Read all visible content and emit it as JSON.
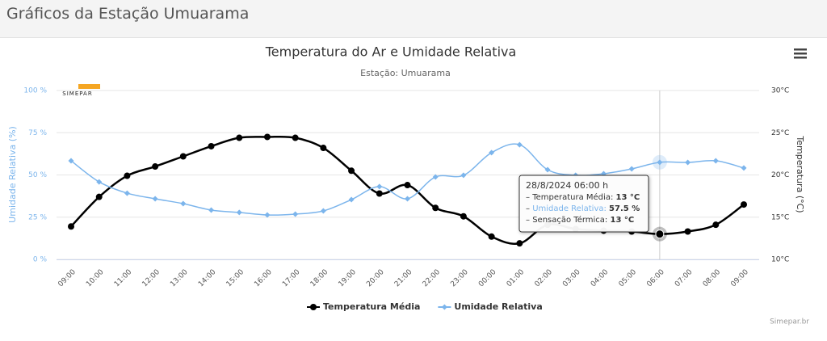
{
  "page_title": "Gráficos da Estação Umuarama",
  "logo_text": "SIMEPAR",
  "credit": "Simepar.br",
  "chart_data": {
    "type": "spline",
    "title": "Temperatura do Ar e Umidade Relativa",
    "subtitle": "Estação: Umuarama",
    "y_title": "Umidade Relativa (%)",
    "y2_title": "Temperatura (°C)",
    "categories": [
      "09:00",
      "10:00",
      "11:00",
      "12:00",
      "13:00",
      "14:00",
      "15:00",
      "16:00",
      "17:00",
      "18:00",
      "19:00",
      "20:00",
      "21:00",
      "22:00",
      "23:00",
      "00:00",
      "01:00",
      "02:00",
      "03:00",
      "04:00",
      "05:00",
      "06:00",
      "07:00",
      "08:00",
      "09:00"
    ],
    "ylim": [
      0,
      100
    ],
    "yticks": [
      {
        "value": 0,
        "label": "0 %"
      },
      {
        "value": 25,
        "label": "25 %"
      },
      {
        "value": 50,
        "label": "50 %"
      },
      {
        "value": 75,
        "label": "75 %"
      },
      {
        "value": 100,
        "label": "100 %"
      }
    ],
    "y2lim": [
      10,
      30
    ],
    "y2ticks": [
      {
        "value": 10,
        "label": "10°C"
      },
      {
        "value": 15,
        "label": "15°C"
      },
      {
        "value": 20,
        "label": "20°C"
      },
      {
        "value": 25,
        "label": "25°C"
      },
      {
        "value": 30,
        "label": "30°C"
      }
    ],
    "grid": true,
    "legend": "bottom",
    "series": [
      {
        "name": "Temperatura Média",
        "color": "#000000",
        "axis": "y2",
        "values": [
          13.9,
          17.4,
          19.9,
          21.0,
          22.2,
          23.4,
          24.4,
          24.5,
          24.4,
          23.2,
          20.5,
          17.8,
          18.8,
          16.1,
          15.1,
          12.7,
          11.9,
          14.1,
          13.6,
          13.4,
          13.3,
          13,
          13.3,
          14.1,
          16.5
        ]
      },
      {
        "name": "Umidade Relativa",
        "color": "#7cb5ec",
        "axis": "y",
        "values": [
          58.4,
          45.9,
          39.2,
          35.9,
          33.0,
          29.2,
          27.8,
          26.3,
          26.8,
          28.7,
          35.4,
          43.1,
          35.9,
          48.8,
          49.8,
          63.2,
          67.9,
          53.1,
          49.8,
          50.7,
          53.6,
          57.5,
          57.4,
          58.4,
          54.1
        ]
      }
    ],
    "tooltip": {
      "title": "28/8/2024 06:00 h",
      "lines": [
        {
          "label": "Temperatura Média:",
          "value": "13 °C"
        },
        {
          "label": "Umidade Relativa:",
          "value": "57.5 %"
        },
        {
          "label": "Sensação Térmica:",
          "value": "13 °C"
        }
      ]
    }
  }
}
